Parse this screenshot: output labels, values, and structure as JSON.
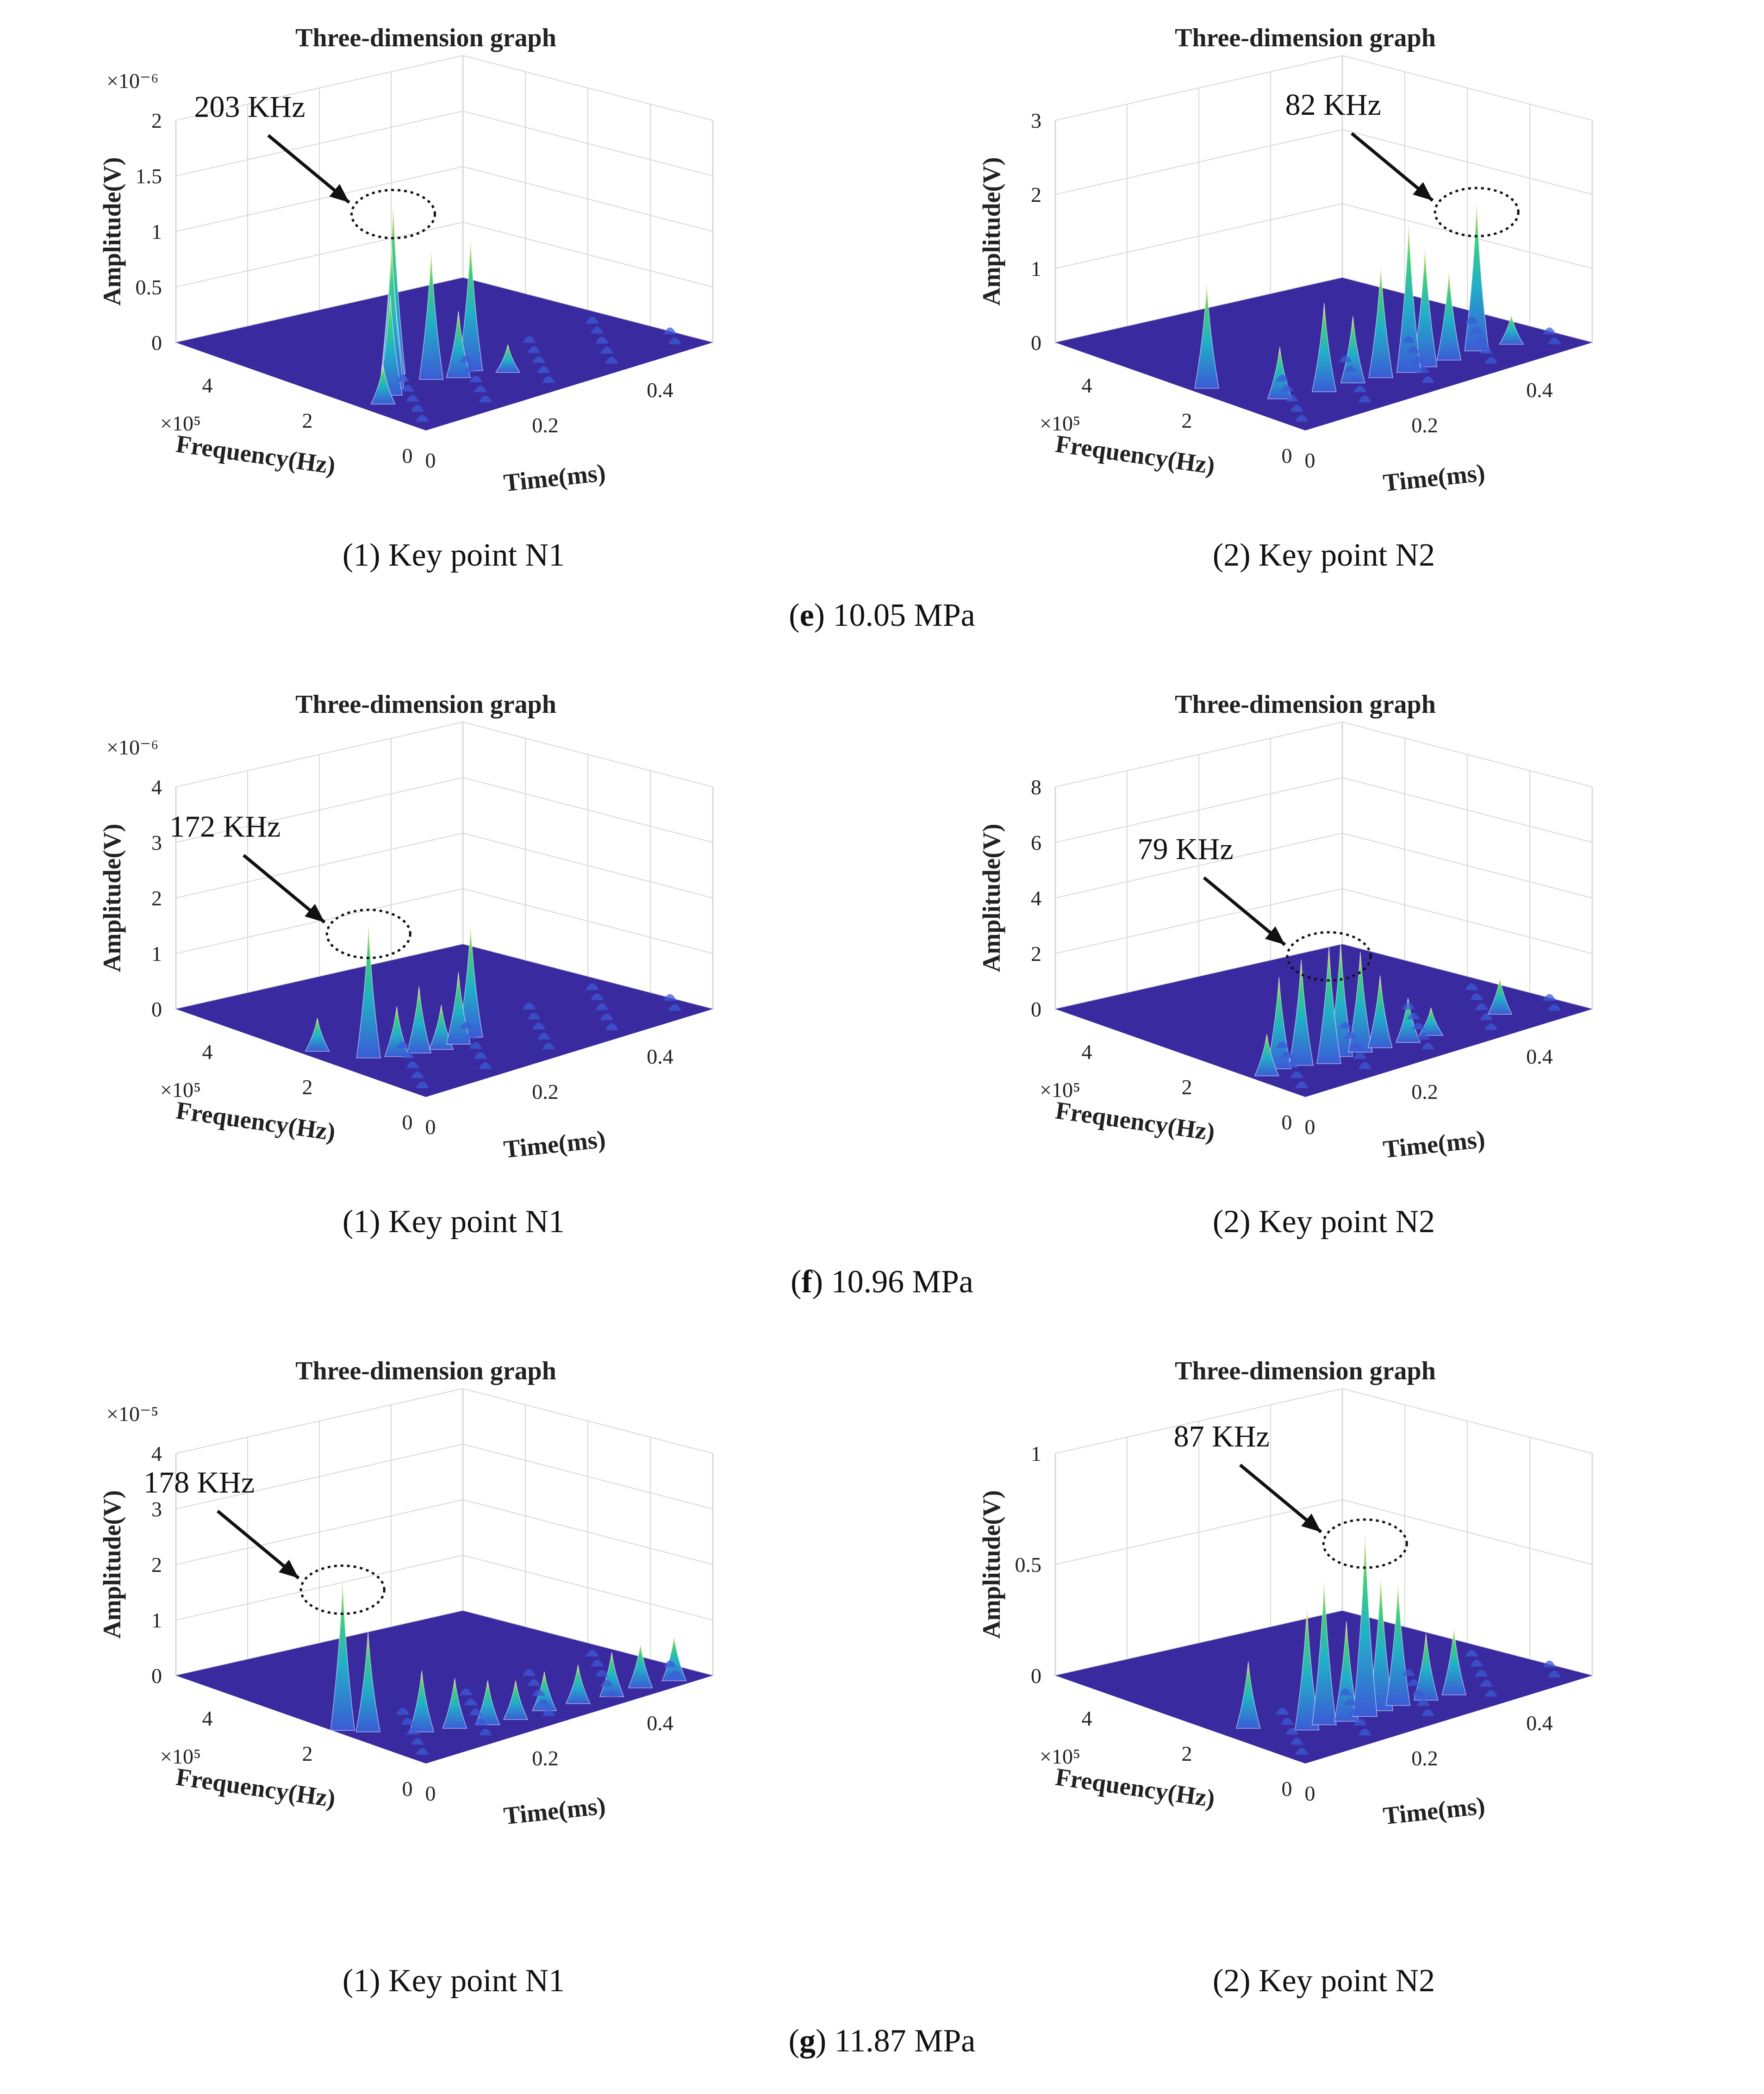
{
  "groups": [
    {
      "id": "e",
      "letter": "e",
      "value_label": "10.05 MPa"
    },
    {
      "id": "f",
      "letter": "f",
      "value_label": "10.96 MPa"
    },
    {
      "id": "g",
      "letter": "g",
      "value_label": "11.87 MPa"
    }
  ],
  "colors": {
    "floor": "#3a2aa0",
    "grid": "#d8d8d8",
    "peak_low": "#3b5bd6",
    "peak_mid": "#21b0c8",
    "peak_high": "#3fcf7a",
    "peak_top": "#f2d23a",
    "annotation": "#111111"
  },
  "chart_data": [
    {
      "type": "3d-surface",
      "group": "e",
      "title": "Three-dimension graph",
      "xlabel": "Time(ms)",
      "ylabel": "Frequency(Hz)",
      "zlabel": "Amplitude(V)",
      "y_multiplier": "×10⁵",
      "z_multiplier": "×10⁻⁶",
      "xlim": [
        0,
        0.5
      ],
      "ylim": [
        0,
        5
      ],
      "zlim": [
        0,
        2
      ],
      "x_ticks": [
        "0",
        "0.2",
        "0.4"
      ],
      "y_ticks": [
        "0",
        "2",
        "4"
      ],
      "z_ticks": [
        "0",
        "0.5",
        "1",
        "1.5",
        "2"
      ],
      "caption": "(1) Key point N1",
      "annotation": "203 KHz",
      "peaks": [
        {
          "t": 0.03,
          "f": 1.2,
          "a": 0.35
        },
        {
          "t": 0.06,
          "f": 1.4,
          "a": 0.9
        },
        {
          "t": 0.08,
          "f": 1.6,
          "a": 1.3
        },
        {
          "t": 0.1,
          "f": 1.8,
          "a": 1.0
        },
        {
          "t": 0.12,
          "f": 2.03,
          "a": 1.52
        },
        {
          "t": 0.14,
          "f": 1.5,
          "a": 1.15
        },
        {
          "t": 0.17,
          "f": 1.3,
          "a": 0.6
        },
        {
          "t": 0.2,
          "f": 1.4,
          "a": 1.18
        },
        {
          "t": 0.23,
          "f": 1.0,
          "a": 0.25
        }
      ]
    },
    {
      "type": "3d-surface",
      "group": "e",
      "title": "Three-dimension graph",
      "xlabel": "Time(ms)",
      "ylabel": "Frequency(Hz)",
      "zlabel": "Amplitude(V)",
      "y_multiplier": "×10⁵",
      "z_multiplier": "",
      "xlim": [
        0,
        0.5
      ],
      "ylim": [
        0,
        5
      ],
      "zlim": [
        0,
        3
      ],
      "x_ticks": [
        "0",
        "0.2",
        "0.4"
      ],
      "y_ticks": [
        "0",
        "2",
        "4"
      ],
      "z_ticks": [
        "0",
        "1",
        "2",
        "3"
      ],
      "caption": "(2) Key point N2",
      "annotation": "82 KHz",
      "peaks": [
        {
          "t": 0.02,
          "f": 2.2,
          "a": 1.4
        },
        {
          "t": 0.06,
          "f": 1.2,
          "a": 0.7
        },
        {
          "t": 0.12,
          "f": 1.0,
          "a": 1.2
        },
        {
          "t": 0.17,
          "f": 1.0,
          "a": 0.9
        },
        {
          "t": 0.21,
          "f": 0.9,
          "a": 1.5
        },
        {
          "t": 0.25,
          "f": 0.8,
          "a": 2.0
        },
        {
          "t": 0.28,
          "f": 0.82,
          "a": 1.6
        },
        {
          "t": 0.32,
          "f": 0.8,
          "a": 1.2
        },
        {
          "t": 0.37,
          "f": 0.82,
          "a": 2.0
        },
        {
          "t": 0.42,
          "f": 0.7,
          "a": 0.4
        }
      ]
    },
    {
      "type": "3d-surface",
      "group": "f",
      "title": "Three-dimension graph",
      "xlabel": "Time(ms)",
      "ylabel": "Frequency(Hz)",
      "zlabel": "Amplitude(V)",
      "y_multiplier": "×10⁵",
      "z_multiplier": "×10⁻⁶",
      "xlim": [
        0,
        0.5
      ],
      "ylim": [
        0,
        5
      ],
      "zlim": [
        0,
        4
      ],
      "x_ticks": [
        "0",
        "0.2",
        "0.4"
      ],
      "y_ticks": [
        "0",
        "2",
        "4"
      ],
      "z_ticks": [
        "0",
        "1",
        "2",
        "3",
        "4"
      ],
      "caption": "(1) Key point N1",
      "annotation": "172 KHz",
      "peaks": [
        {
          "t": 0.02,
          "f": 2.4,
          "a": 0.6
        },
        {
          "t": 0.05,
          "f": 1.72,
          "a": 2.4
        },
        {
          "t": 0.08,
          "f": 1.5,
          "a": 0.9
        },
        {
          "t": 0.11,
          "f": 1.4,
          "a": 1.2
        },
        {
          "t": 0.14,
          "f": 1.3,
          "a": 0.8
        },
        {
          "t": 0.17,
          "f": 1.3,
          "a": 1.3
        },
        {
          "t": 0.2,
          "f": 1.4,
          "a": 2.0
        }
      ]
    },
    {
      "type": "3d-surface",
      "group": "f",
      "title": "Three-dimension graph",
      "xlabel": "Time(ms)",
      "ylabel": "Frequency(Hz)",
      "zlabel": "Amplitude(V)",
      "y_multiplier": "×10⁵",
      "z_multiplier": "",
      "xlim": [
        0,
        0.5
      ],
      "ylim": [
        0,
        5
      ],
      "zlim": [
        0,
        8
      ],
      "x_ticks": [
        "0",
        "0.2",
        "0.4"
      ],
      "y_ticks": [
        "0",
        "2",
        "4"
      ],
      "z_ticks": [
        "0",
        "2",
        "4",
        "6",
        "8"
      ],
      "caption": "(2) Key point N2",
      "annotation": "79 KHz",
      "peaks": [
        {
          "t": 0.02,
          "f": 1.0,
          "a": 1.5
        },
        {
          "t": 0.05,
          "f": 1.1,
          "a": 3.3
        },
        {
          "t": 0.08,
          "f": 1.0,
          "a": 3.8
        },
        {
          "t": 0.11,
          "f": 0.79,
          "a": 4.2
        },
        {
          "t": 0.14,
          "f": 0.9,
          "a": 4.1
        },
        {
          "t": 0.17,
          "f": 0.85,
          "a": 3.6
        },
        {
          "t": 0.2,
          "f": 0.8,
          "a": 2.6
        },
        {
          "t": 0.24,
          "f": 0.7,
          "a": 1.6
        },
        {
          "t": 0.28,
          "f": 0.7,
          "a": 1.0
        },
        {
          "t": 0.4,
          "f": 0.7,
          "a": 1.3
        }
      ]
    },
    {
      "type": "3d-surface",
      "group": "g",
      "title": "Three-dimension graph",
      "xlabel": "Time(ms)",
      "ylabel": "Frequency(Hz)",
      "zlabel": "Amplitude(V)",
      "y_multiplier": "×10⁵",
      "z_multiplier": "×10⁻⁵",
      "xlim": [
        0,
        0.5
      ],
      "ylim": [
        0,
        5
      ],
      "zlim": [
        0,
        4
      ],
      "x_ticks": [
        "0",
        "0.2",
        "0.4"
      ],
      "y_ticks": [
        "0",
        "2",
        "4"
      ],
      "z_ticks": [
        "0",
        "1",
        "2",
        "3",
        "4"
      ],
      "caption": "(1) Key point N1",
      "annotation": "178 KHz",
      "peaks": [
        {
          "t": 0.01,
          "f": 1.78,
          "a": 2.7
        },
        {
          "t": 0.03,
          "f": 1.5,
          "a": 1.8
        },
        {
          "t": 0.08,
          "f": 1.0,
          "a": 1.1
        },
        {
          "t": 0.12,
          "f": 0.8,
          "a": 0.9
        },
        {
          "t": 0.16,
          "f": 0.6,
          "a": 0.8
        },
        {
          "t": 0.2,
          "f": 0.5,
          "a": 0.7
        },
        {
          "t": 0.25,
          "f": 0.5,
          "a": 0.7
        },
        {
          "t": 0.3,
          "f": 0.4,
          "a": 0.7
        },
        {
          "t": 0.35,
          "f": 0.3,
          "a": 0.8
        },
        {
          "t": 0.4,
          "f": 0.3,
          "a": 0.8
        },
        {
          "t": 0.45,
          "f": 0.2,
          "a": 0.8
        }
      ]
    },
    {
      "type": "3d-surface",
      "group": "g",
      "title": "Three-dimension graph",
      "xlabel": "Time(ms)",
      "ylabel": "Frequency(Hz)",
      "zlabel": "Amplitude(V)",
      "y_multiplier": "×10⁵",
      "z_multiplier": "",
      "xlim": [
        0,
        0.5
      ],
      "ylim": [
        0,
        5
      ],
      "zlim": [
        0,
        1
      ],
      "x_ticks": [
        "0",
        "0.2",
        "0.4"
      ],
      "y_ticks": [
        "0",
        "2",
        "4"
      ],
      "z_ticks": [
        "0",
        "0.5",
        "1"
      ],
      "caption": "(2) Key point N2",
      "annotation": "87 KHz",
      "peaks": [
        {
          "t": 0.04,
          "f": 1.6,
          "a": 0.3
        },
        {
          "t": 0.09,
          "f": 1.0,
          "a": 0.55
        },
        {
          "t": 0.12,
          "f": 1.0,
          "a": 0.65
        },
        {
          "t": 0.15,
          "f": 0.9,
          "a": 0.45
        },
        {
          "t": 0.18,
          "f": 0.87,
          "a": 0.82
        },
        {
          "t": 0.21,
          "f": 0.9,
          "a": 0.6
        },
        {
          "t": 0.24,
          "f": 0.9,
          "a": 0.55
        },
        {
          "t": 0.28,
          "f": 0.8,
          "a": 0.3
        },
        {
          "t": 0.32,
          "f": 0.7,
          "a": 0.3
        }
      ]
    }
  ]
}
